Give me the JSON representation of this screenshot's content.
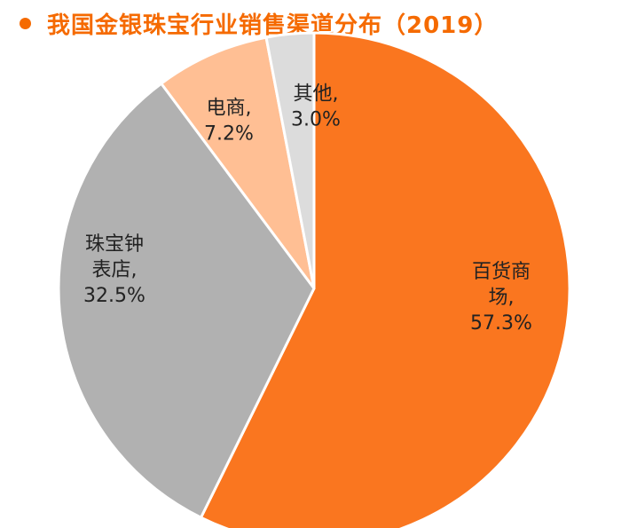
{
  "header": {
    "title": "我国金银珠宝行业销售渠道分布（2019）"
  },
  "colors": {
    "accent": "#f56a00",
    "slice_colors": [
      "#fa761f",
      "#b1b1b1",
      "#ffbf94",
      "#dcdcdc"
    ]
  },
  "chart_data": {
    "type": "pie",
    "title": "我国金银珠宝行业销售渠道分布（2019）",
    "start_angle_deg": 0,
    "direction": "clockwise",
    "slices": [
      {
        "name": "百货商场",
        "value": 57.3,
        "label_lines": [
          "百货商",
          "场,",
          "57.3%"
        ]
      },
      {
        "name": "珠宝钟表店",
        "value": 32.5,
        "label_lines": [
          "珠宝钟",
          "表店,",
          "32.5%"
        ]
      },
      {
        "name": "电商",
        "value": 7.2,
        "label_lines": [
          "电商,",
          "7.2%"
        ]
      },
      {
        "name": "其他",
        "value": 3.0,
        "label_lines": [
          "其他,",
          "3.0%"
        ]
      }
    ]
  }
}
